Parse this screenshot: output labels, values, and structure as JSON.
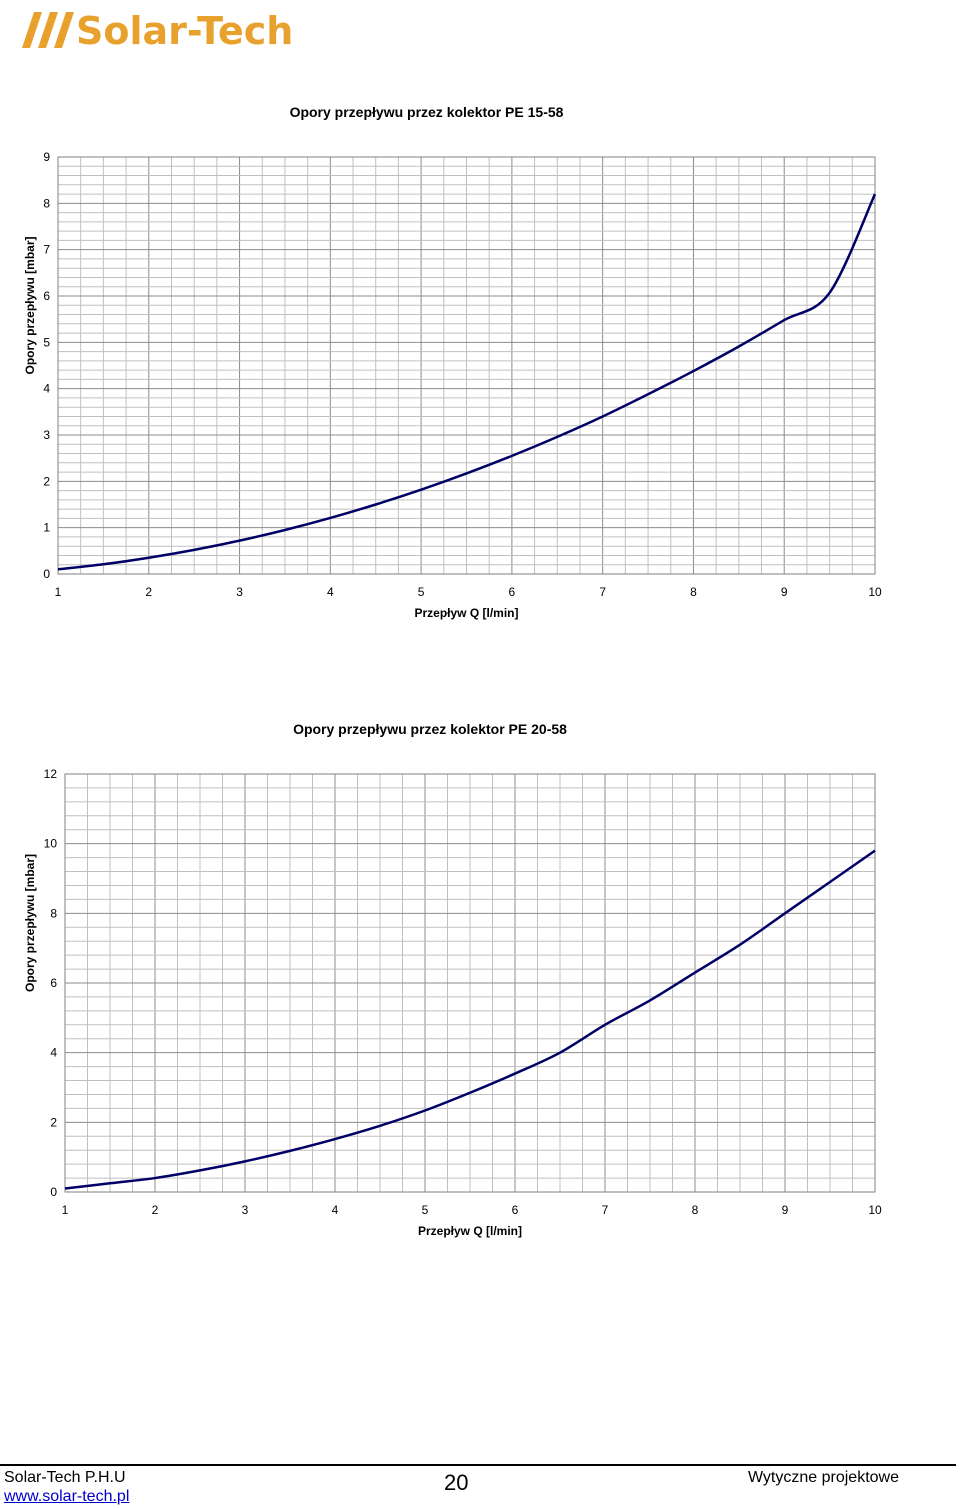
{
  "header": {
    "logo_text": "Solar-Tech",
    "logo_color": "#e8a12c"
  },
  "chart_data": [
    {
      "type": "line",
      "title": "Opory przepływu przez kolektor PE 15-58",
      "xlabel": "Przepływ Q [l/min]",
      "ylabel": "Opory przepływu [mbar]",
      "xlim": [
        1,
        10
      ],
      "ylim": [
        0,
        9
      ],
      "xticks": [
        1,
        2,
        3,
        4,
        5,
        6,
        7,
        8,
        9,
        10
      ],
      "yticks": [
        0,
        1,
        2,
        3,
        4,
        5,
        6,
        7,
        8,
        9
      ],
      "grid": true,
      "line_color": "#000066",
      "series": [
        {
          "x": [
            1,
            1.5,
            2,
            2.5,
            3,
            3.5,
            4,
            4.5,
            5,
            5.5,
            6,
            6.5,
            7,
            7.5,
            8,
            8.5,
            9,
            9.5,
            10
          ],
          "values": [
            0.1,
            0.21,
            0.35,
            0.52,
            0.72,
            0.95,
            1.21,
            1.5,
            1.82,
            2.17,
            2.55,
            2.96,
            3.4,
            3.88,
            4.38,
            4.91,
            5.48,
            6.07,
            8.2
          ]
        }
      ]
    },
    {
      "type": "line",
      "title": "Opory przepływu przez kolektor PE 20-58",
      "xlabel": "Przepływ Q [l/min]",
      "ylabel": "Opory przepływu [mbar]",
      "xlim": [
        1,
        10
      ],
      "ylim": [
        0,
        12
      ],
      "xticks": [
        1,
        2,
        3,
        4,
        5,
        6,
        7,
        8,
        9,
        10
      ],
      "yticks": [
        0,
        2,
        4,
        6,
        8,
        10,
        12
      ],
      "grid": true,
      "line_color": "#000066",
      "series": [
        {
          "x": [
            1,
            1.5,
            2,
            2.5,
            3,
            3.5,
            4,
            4.5,
            5,
            5.5,
            6,
            6.5,
            7,
            7.5,
            8,
            8.5,
            9,
            9.5,
            10
          ],
          "values": [
            0.1,
            0.25,
            0.4,
            0.62,
            0.88,
            1.18,
            1.52,
            1.9,
            2.34,
            2.85,
            3.4,
            4.0,
            4.8,
            5.5,
            6.3,
            7.1,
            8.0,
            8.9,
            9.8
          ]
        }
      ]
    }
  ],
  "footer": {
    "company": "Solar-Tech P.H.U",
    "website": "www.solar-tech.pl",
    "page_number": "20",
    "doc_title": "Wytyczne projektowe"
  }
}
